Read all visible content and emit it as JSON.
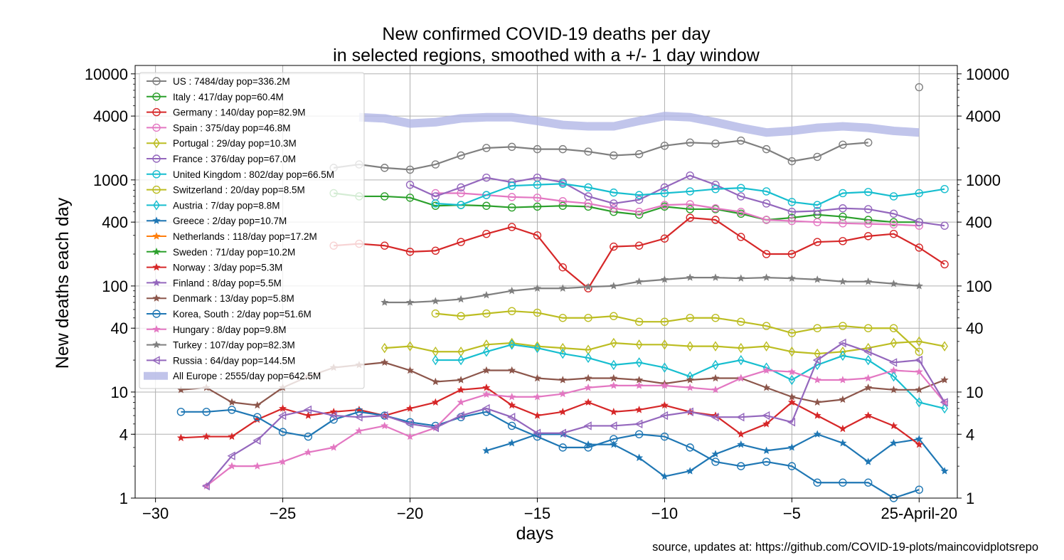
{
  "chart_data": {
    "type": "line",
    "title": "New confirmed COVID-19 deaths per day",
    "subtitle": "in selected regions, smoothed with a +/- 1 day window",
    "xlabel": "days",
    "ylabel": "New deaths each day",
    "source": "source, updates at: https://github.com/COVID-19-plots/maincovidplotsrepo",
    "yscale": "log",
    "xlim": [
      -30.8,
      1.5
    ],
    "ylim": [
      1,
      12000
    ],
    "x_ticks": [
      {
        "value": -30,
        "label": "−30"
      },
      {
        "value": -25,
        "label": "−25"
      },
      {
        "value": -20,
        "label": "−20"
      },
      {
        "value": -15,
        "label": "−15"
      },
      {
        "value": -10,
        "label": "−10"
      },
      {
        "value": -5,
        "label": "−5"
      },
      {
        "value": 0,
        "label": "25-April-20"
      }
    ],
    "y_ticks": [
      {
        "value": 1,
        "label": "1"
      },
      {
        "value": 4,
        "label": "4"
      },
      {
        "value": 10,
        "label": "10"
      },
      {
        "value": 40,
        "label": "40"
      },
      {
        "value": 100,
        "label": "100"
      },
      {
        "value": 400,
        "label": "400"
      },
      {
        "value": 1000,
        "label": "1000"
      },
      {
        "value": 4000,
        "label": "4000"
      },
      {
        "value": 10000,
        "label": "10000"
      }
    ],
    "grid": true,
    "legend": "upper-left",
    "x_start": -29,
    "series": [
      {
        "name": "US : 7484/day pop=336.2M",
        "color": "#7f7f7f",
        "marker": "circle",
        "values": [
          null,
          null,
          null,
          null,
          null,
          null,
          1300,
          1400,
          1300,
          1250,
          1400,
          1700,
          2000,
          2050,
          1950,
          1950,
          1850,
          1700,
          1750,
          2100,
          2250,
          2200,
          2350,
          1950,
          1500,
          1650,
          2150,
          2250,
          null,
          null
        ]
      },
      {
        "name": "Italy : 417/day pop=60.4M",
        "color": "#2ca02c",
        "marker": "circle",
        "values": [
          null,
          null,
          null,
          null,
          null,
          null,
          750,
          700,
          700,
          680,
          570,
          580,
          570,
          550,
          560,
          570,
          560,
          500,
          470,
          560,
          530,
          530,
          480,
          420,
          440,
          470,
          450,
          420,
          400,
          400
        ]
      },
      {
        "name": "Germany : 140/day pop=82.9M",
        "color": "#d62728",
        "marker": "circle",
        "values": [
          null,
          null,
          null,
          null,
          null,
          null,
          240,
          250,
          240,
          210,
          215,
          260,
          310,
          360,
          300,
          150,
          95,
          235,
          240,
          280,
          440,
          420,
          290,
          200,
          200,
          260,
          265,
          295,
          310,
          230,
          160
        ]
      },
      {
        "name": "Spain : 375/day pop=46.8M",
        "color": "#e377c2",
        "marker": "circle",
        "values": [
          null,
          null,
          null,
          null,
          null,
          null,
          null,
          null,
          null,
          null,
          750,
          750,
          720,
          690,
          680,
          630,
          600,
          540,
          500,
          580,
          590,
          540,
          500,
          420,
          410,
          400,
          390,
          385,
          380,
          370
        ]
      },
      {
        "name": "Portugal : 29/day pop=10.3M",
        "color": "#bcbd22",
        "marker": "diamond",
        "values": [
          null,
          null,
          null,
          null,
          null,
          null,
          null,
          null,
          26,
          27,
          24,
          24,
          28,
          29,
          27,
          26,
          25,
          29,
          28,
          28,
          27,
          27,
          26,
          27,
          24,
          23,
          24,
          26,
          29,
          30,
          27
        ]
      },
      {
        "name": "France : 376/day pop=67.0M",
        "color": "#9467bd",
        "marker": "circle",
        "values": [
          null,
          null,
          null,
          null,
          null,
          null,
          null,
          null,
          null,
          900,
          700,
          850,
          1050,
          950,
          1050,
          950,
          700,
          600,
          650,
          850,
          1100,
          900,
          700,
          600,
          500,
          510,
          540,
          530,
          480,
          400,
          370
        ]
      },
      {
        "name": "United Kingdom : 802/day pop=66.5M",
        "color": "#17becf",
        "marker": "circle",
        "values": [
          null,
          null,
          null,
          null,
          null,
          null,
          null,
          null,
          null,
          null,
          600,
          580,
          720,
          880,
          900,
          920,
          850,
          760,
          720,
          750,
          780,
          820,
          840,
          780,
          620,
          580,
          750,
          770,
          700,
          750,
          820
        ]
      },
      {
        "name": "Switzerland : 20/day pop=8.5M",
        "color": "#bcbd22",
        "marker": "circle",
        "values": [
          null,
          null,
          null,
          null,
          null,
          null,
          null,
          null,
          null,
          null,
          55,
          52,
          55,
          58,
          56,
          50,
          50,
          52,
          46,
          46,
          50,
          50,
          46,
          42,
          36,
          40,
          42,
          40,
          40,
          24
        ]
      },
      {
        "name": "Austria : 7/day pop=8.8M",
        "color": "#17becf",
        "marker": "diamond",
        "values": [
          null,
          null,
          null,
          null,
          null,
          null,
          null,
          null,
          null,
          null,
          20,
          20,
          24,
          28,
          26,
          23,
          21,
          18,
          19,
          17,
          14,
          18,
          20,
          17,
          13,
          18,
          22,
          20,
          14,
          8,
          7
        ]
      },
      {
        "name": "Greece : 2/day pop=10.7M",
        "color": "#1f77b4",
        "marker": "star",
        "values": [
          null,
          null,
          null,
          null,
          null,
          null,
          null,
          null,
          null,
          null,
          null,
          null,
          2.8,
          3.3,
          4,
          4,
          3.2,
          3.2,
          2.4,
          1.6,
          1.8,
          2.6,
          3.2,
          2.8,
          3,
          4,
          3.3,
          2.2,
          3.3,
          3.6,
          1.8
        ]
      },
      {
        "name": "Netherlands : 118/day pop=17.2M",
        "color": "#ff7f0e",
        "marker": "star",
        "values": [
          null,
          null,
          null,
          null,
          null,
          null,
          null,
          null,
          null,
          null,
          null,
          null,
          null,
          null,
          null,
          null,
          null,
          null,
          null,
          null,
          null,
          null,
          null,
          null,
          null,
          null,
          null,
          null,
          null,
          null
        ]
      },
      {
        "name": "Sweden : 71/day pop=10.2M",
        "color": "#2ca02c",
        "marker": "star",
        "values": [
          null,
          null,
          null,
          null,
          null,
          null,
          null,
          null,
          null,
          null,
          null,
          null,
          null,
          null,
          null,
          null,
          null,
          null,
          null,
          null,
          null,
          null,
          null,
          null,
          null,
          null,
          null,
          null,
          null,
          null
        ]
      },
      {
        "name": "Norway : 3/day pop=5.3M",
        "color": "#d62728",
        "marker": "star",
        "values": [
          3.7,
          3.8,
          3.8,
          5.5,
          7,
          6,
          6.5,
          6.8,
          6,
          7,
          8,
          10.5,
          11,
          7.5,
          6,
          6.5,
          8,
          6.5,
          6.8,
          7.5,
          6.5,
          6,
          4,
          5,
          8,
          6,
          4.5,
          6,
          4.8,
          3.2
        ]
      },
      {
        "name": "Finland : 8/day pop=5.5M",
        "color": "#9467bd",
        "marker": "star",
        "values": [
          null,
          null,
          null,
          null,
          null,
          null,
          null,
          null,
          null,
          null,
          null,
          null,
          null,
          null,
          null,
          null,
          null,
          null,
          null,
          null,
          null,
          null,
          null,
          null,
          null,
          null,
          null,
          null,
          null,
          null
        ]
      },
      {
        "name": "Denmark : 13/day pop=5.8M",
        "color": "#8c564b",
        "marker": "star",
        "values": [
          10.5,
          11,
          8,
          7.5,
          11,
          14,
          17,
          18,
          19,
          16,
          12.5,
          13,
          16,
          16,
          13.5,
          13,
          13.5,
          13.5,
          13,
          12,
          13,
          13.5,
          13.5,
          11,
          9,
          8,
          8.5,
          11,
          10.5,
          10.5,
          13
        ]
      },
      {
        "name": "Korea, South : 2/day pop=51.6M",
        "color": "#1f77b4",
        "marker": "circle",
        "values": [
          6.5,
          6.5,
          6.8,
          5.8,
          4.2,
          3.8,
          5.5,
          6.5,
          6,
          5.2,
          4.8,
          5.8,
          6.5,
          4.8,
          3.8,
          3,
          3,
          3.6,
          4,
          3.8,
          3,
          2.2,
          2,
          2.2,
          2,
          1.4,
          1.4,
          1.4,
          1,
          1.2
        ]
      },
      {
        "name": "Hungary : 8/day pop=9.8M",
        "color": "#e377c2",
        "marker": "star",
        "values": [
          null,
          1.3,
          2,
          2,
          2.2,
          2.7,
          3,
          4.3,
          4.8,
          3.8,
          4.6,
          8,
          9.5,
          9,
          9,
          9.6,
          11,
          11.5,
          11.5,
          11.5,
          11,
          10.5,
          13.5,
          16,
          15.5,
          13,
          13,
          13.5,
          16,
          15.5,
          8
        ]
      },
      {
        "name": "Turkey : 107/day pop=82.3M",
        "color": "#7f7f7f",
        "marker": "star",
        "values": [
          null,
          null,
          null,
          null,
          null,
          null,
          null,
          null,
          70,
          70,
          72,
          75,
          82,
          90,
          95,
          95,
          98,
          100,
          110,
          115,
          120,
          120,
          118,
          120,
          118,
          115,
          110,
          110,
          105,
          100
        ]
      },
      {
        "name": "Russia : 64/day pop=144.5M",
        "color": "#9467bd",
        "marker": "triangle",
        "values": [
          null,
          1.3,
          2.5,
          3.5,
          6,
          6.8,
          6,
          5.8,
          6,
          5,
          4.6,
          6,
          7,
          5.8,
          4.1,
          4.1,
          4.8,
          4.8,
          5,
          6,
          6.5,
          5.8,
          5.8,
          6,
          5.2,
          20,
          29,
          24,
          19,
          20,
          8
        ]
      },
      {
        "name": "All Europe : 2555/day pop=642.5M",
        "color": "#b2b6e6",
        "marker": "band",
        "values": [
          null,
          null,
          null,
          null,
          null,
          null,
          null,
          3900,
          3800,
          3400,
          3500,
          3800,
          3900,
          3900,
          3600,
          3300,
          3200,
          3200,
          3600,
          4000,
          3900,
          3500,
          3100,
          2800,
          2900,
          3100,
          3200,
          3100,
          2900,
          2800
        ]
      }
    ]
  }
}
